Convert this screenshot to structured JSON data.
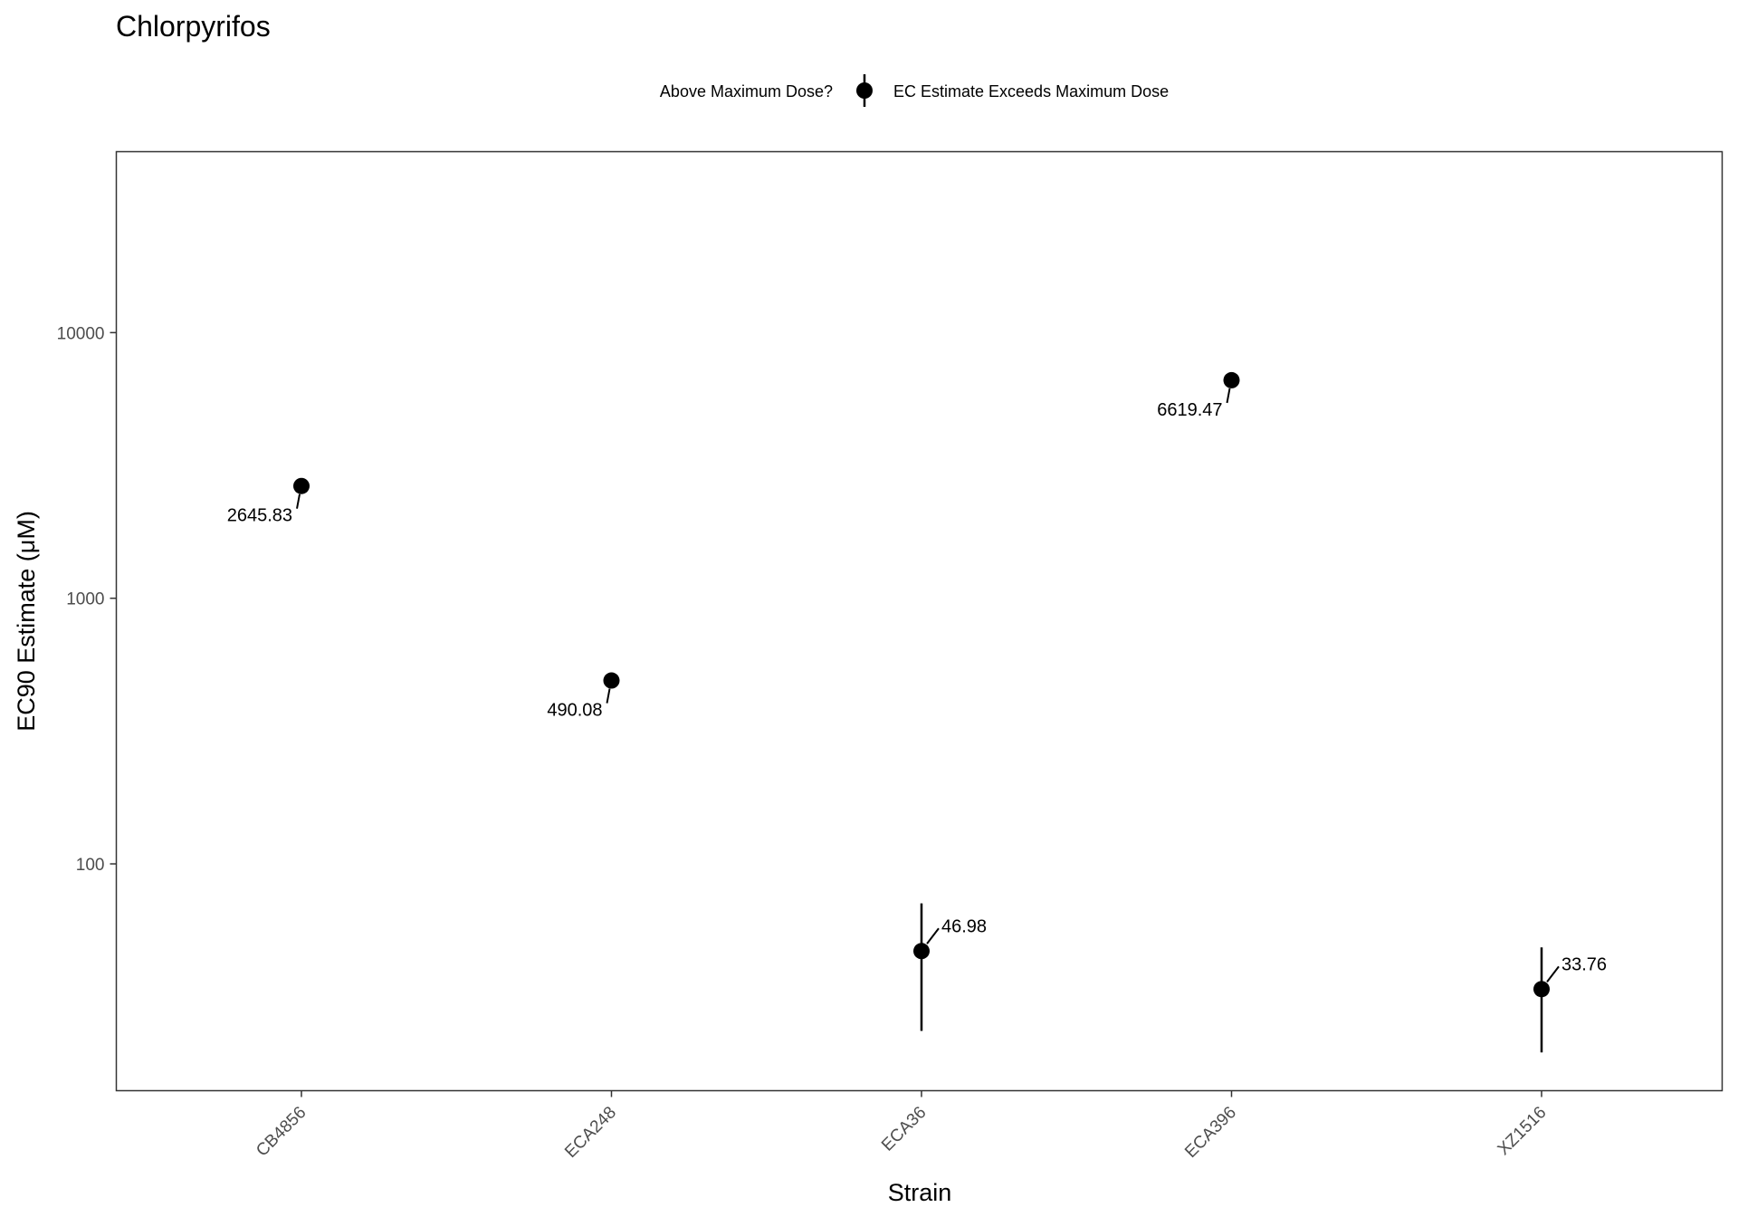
{
  "chart_data": {
    "type": "scatter",
    "title": "Chlorpyrifos",
    "xlabel": "Strain",
    "ylabel": "EC90 Estimate (μM)",
    "y_scale": "log10",
    "ylim": [
      14,
      48000
    ],
    "y_ticks": [
      100,
      1000,
      10000
    ],
    "y_tick_labels": [
      "100",
      "1000",
      "10000"
    ],
    "categories": [
      "CB4856",
      "ECA248",
      "ECA36",
      "ECA396",
      "XZ1516"
    ],
    "legend": {
      "title": "Above Maximum Dose?",
      "placement": "top",
      "entries": [
        {
          "label": "EC Estimate Exceeds Maximum Dose"
        }
      ]
    },
    "points": [
      {
        "category": "CB4856",
        "value": 2645.83,
        "label": "2645.83",
        "lower": null,
        "upper": null,
        "label_side": "left"
      },
      {
        "category": "ECA248",
        "value": 490.08,
        "label": "490.08",
        "lower": null,
        "upper": null,
        "label_side": "left"
      },
      {
        "category": "ECA36",
        "value": 46.98,
        "label": "46.98",
        "lower": 23.5,
        "upper": 71,
        "label_side": "right"
      },
      {
        "category": "ECA396",
        "value": 6619.47,
        "label": "6619.47",
        "lower": null,
        "upper": null,
        "label_side": "left"
      },
      {
        "category": "XZ1516",
        "value": 33.76,
        "label": "33.76",
        "lower": 19.5,
        "upper": 48.5,
        "label_side": "right"
      }
    ],
    "grid": false,
    "colors": {
      "point": "#000000",
      "panel_border": "#333333",
      "tick": "#333333"
    }
  }
}
